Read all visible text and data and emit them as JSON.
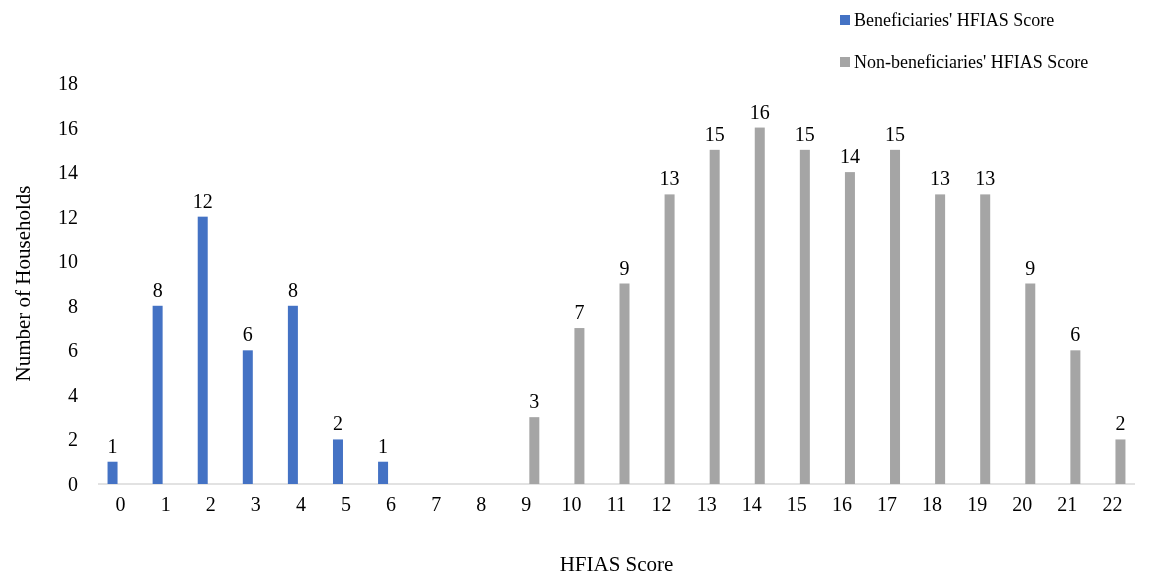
{
  "chart_data": {
    "type": "bar",
    "xlabel": "HFIAS Score",
    "ylabel": "Number of Households",
    "categories": [
      "0",
      "1",
      "2",
      "3",
      "4",
      "5",
      "6",
      "7",
      "8",
      "9",
      "10",
      "11",
      "12",
      "13",
      "14",
      "15",
      "16",
      "17",
      "18",
      "19",
      "20",
      "21",
      "22"
    ],
    "series": [
      {
        "name": "Beneficiaries' HFIAS Score",
        "color": "#4472c4",
        "values": [
          1,
          8,
          12,
          6,
          8,
          2,
          1,
          null,
          null,
          null,
          null,
          null,
          null,
          null,
          null,
          null,
          null,
          null,
          null,
          null,
          null,
          null,
          null
        ]
      },
      {
        "name": "Non-beneficiaries' HFIAS Score",
        "color": "#a5a5a5",
        "values": [
          null,
          null,
          null,
          null,
          null,
          null,
          null,
          null,
          null,
          3,
          7,
          9,
          13,
          15,
          16,
          15,
          14,
          15,
          13,
          13,
          9,
          6,
          2
        ]
      }
    ],
    "ylim": [
      0,
      18
    ],
    "yticks": [
      0,
      2,
      4,
      6,
      8,
      10,
      12,
      14,
      16,
      18
    ],
    "data_labels": true,
    "legend": "top right",
    "grid": false
  }
}
